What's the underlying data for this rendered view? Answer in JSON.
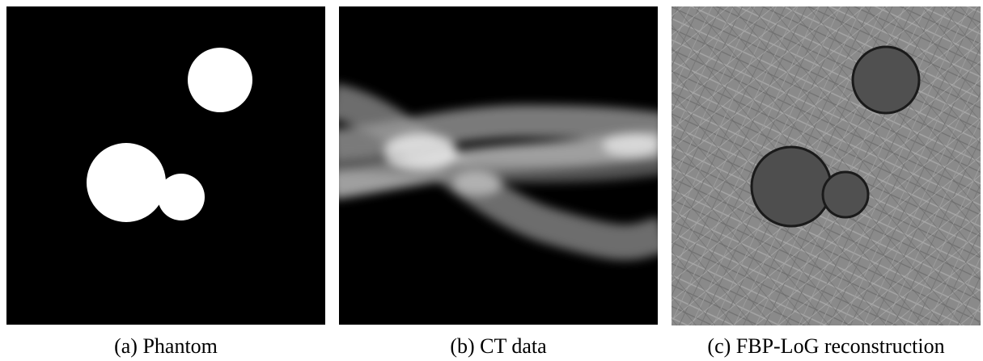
{
  "figure": {
    "captions": [
      "(a) Phantom",
      "(b) CT data",
      "(c) FBP-LoG reconstruction"
    ]
  }
}
